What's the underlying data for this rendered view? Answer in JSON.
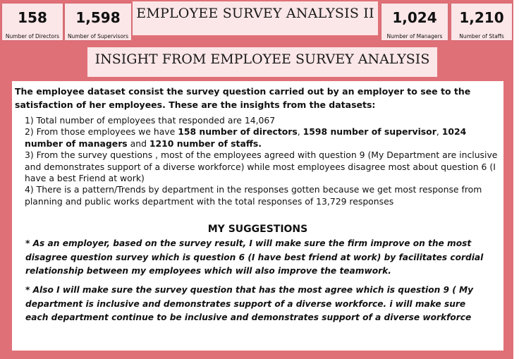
{
  "header": {
    "title": "EMPLOYEE SURVEY ANALYSIS II"
  },
  "kpis": [
    {
      "value": "158",
      "label": "Number of Directors"
    },
    {
      "value": "1,598",
      "label": "Number of Supervisors"
    },
    {
      "value": "1,024",
      "label": "Number of Managers"
    },
    {
      "value": "1,210",
      "label": "Number  of Staffs"
    }
  ],
  "insight": {
    "title": "INSIGHT FROM EMPLOYEE SURVEY ANALYSIS",
    "intro": "The employee dataset consist the survey question carried out by an employer to see to the satisfaction of her employees. These are the insights from the datasets:",
    "point1": "1) Total number of employees that responded are 14,067",
    "point2": {
      "a": "2) From those employees we have ",
      "b": "158 number of directors",
      "c": ", ",
      "d": "1598 number of supervisor",
      "e": ", ",
      "f": "1024 number of managers",
      "g": " and ",
      "h": "1210 number of staffs."
    },
    "point3": "3) From the survey questions , most of the employees agreed with question 9 (My Department are inclusive and demonstrates support of a diverse workforce) while most employees disagree most about question 6 (I have a best Friend at work)",
    "point4": "4) There is a pattern/Trends by department in the responses gotten because we get most response from planning and public works  department with the total responses of 13,729 responses"
  },
  "suggestions": {
    "title": "MY SUGGESTIONS",
    "s1": "* As an employer, based on the survey result, I will make sure the firm improve on the most disagree question survey which is question 6 (I have best friend at work) by facilitates cordial relationship between my employees which will also improve the teamwork.",
    "s2": "* Also I will make sure the survey question that has the most agree which is question 9 ( My department is inclusive and demonstrates support of a diverse  workforce. i will make sure each department continue to be inclusive and demonstrates support of a diverse workforce"
  }
}
